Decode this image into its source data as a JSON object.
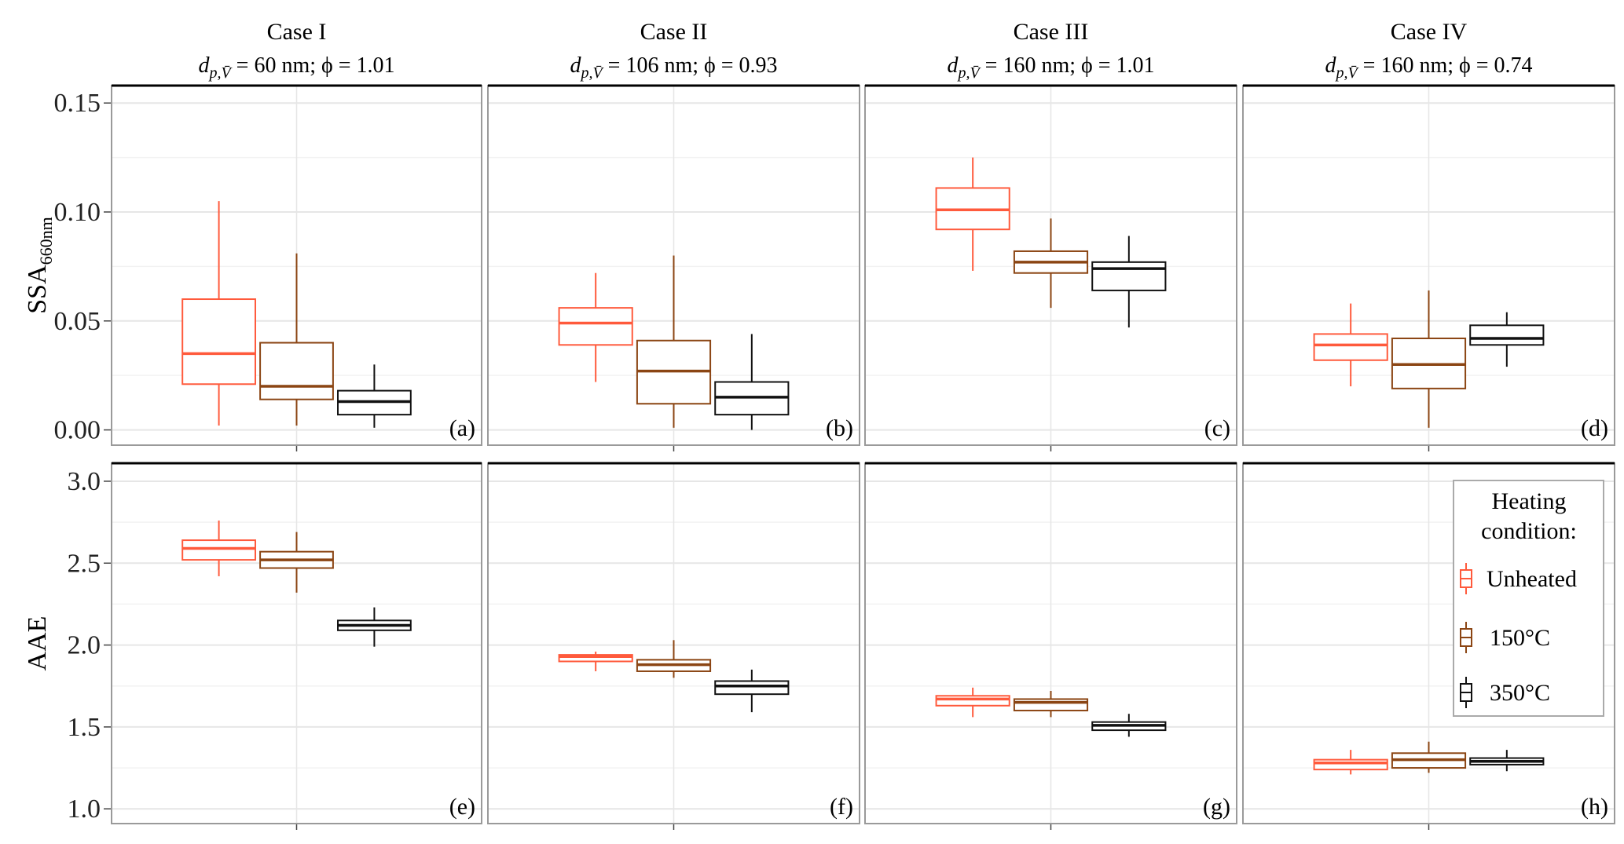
{
  "chart_data": {
    "type": "boxplot",
    "groups": [
      "Unheated",
      "150°C",
      "350°C"
    ],
    "colors": {
      "Unheated": "#ff5a3c",
      "150°C": "#8b4513",
      "350°C": "#111111"
    },
    "legend": {
      "title_line1": "Heating",
      "title_line2": "condition:",
      "placement": "inside-right (panel h)"
    },
    "grid": true,
    "columns": [
      {
        "title": "Case I",
        "sub_symbol": "d",
        "sub_subscript": "p,V̄",
        "sub_text": " = 60 nm; ϕ = 1.01"
      },
      {
        "title": "Case II",
        "sub_symbol": "d",
        "sub_subscript": "p,V̄",
        "sub_text": " = 106 nm; ϕ = 0.93"
      },
      {
        "title": "Case III",
        "sub_symbol": "d",
        "sub_subscript": "p,V̄",
        "sub_text": " = 160 nm; ϕ = 1.01"
      },
      {
        "title": "Case IV",
        "sub_symbol": "d",
        "sub_subscript": "p,V̄",
        "sub_text": " = 160 nm; ϕ = 0.74"
      }
    ],
    "rows": [
      {
        "ylabel_main": "SSA",
        "ylabel_sub": "660nm",
        "ylim": [
          -0.007,
          0.158
        ],
        "ticks": [
          0.0,
          0.05,
          0.1,
          0.15
        ],
        "tick_labels": [
          "0.00",
          "0.05",
          "0.10",
          "0.15"
        ],
        "panels": [
          {
            "label": "(a)",
            "boxes": [
              [
                0.002,
                0.021,
                0.035,
                0.06,
                0.105
              ],
              [
                0.002,
                0.014,
                0.02,
                0.04,
                0.081
              ],
              [
                0.001,
                0.007,
                0.013,
                0.018,
                0.03
              ]
            ]
          },
          {
            "label": "(b)",
            "boxes": [
              [
                0.022,
                0.039,
                0.049,
                0.056,
                0.072
              ],
              [
                0.001,
                0.012,
                0.027,
                0.041,
                0.08
              ],
              [
                0.0,
                0.007,
                0.015,
                0.022,
                0.044
              ]
            ]
          },
          {
            "label": "(c)",
            "boxes": [
              [
                0.073,
                0.092,
                0.101,
                0.111,
                0.125
              ],
              [
                0.056,
                0.072,
                0.077,
                0.082,
                0.097
              ],
              [
                0.047,
                0.064,
                0.074,
                0.077,
                0.089
              ]
            ]
          },
          {
            "label": "(d)",
            "boxes": [
              [
                0.02,
                0.032,
                0.039,
                0.044,
                0.058
              ],
              [
                0.001,
                0.019,
                0.03,
                0.042,
                0.064
              ],
              [
                0.029,
                0.039,
                0.042,
                0.048,
                0.054
              ]
            ]
          }
        ]
      },
      {
        "ylabel_main": "AAE",
        "ylabel_sub": "",
        "ylim": [
          0.91,
          3.11
        ],
        "ticks": [
          1.0,
          1.5,
          2.0,
          2.5,
          3.0
        ],
        "tick_labels": [
          "1.0",
          "1.5",
          "2.0",
          "2.5",
          "3.0"
        ],
        "panels": [
          {
            "label": "(e)",
            "boxes": [
              [
                2.42,
                2.52,
                2.59,
                2.64,
                2.76
              ],
              [
                2.32,
                2.47,
                2.52,
                2.57,
                2.69
              ],
              [
                1.99,
                2.09,
                2.12,
                2.15,
                2.23
              ]
            ]
          },
          {
            "label": "(f)",
            "boxes": [
              [
                1.84,
                1.9,
                1.93,
                1.94,
                1.96
              ],
              [
                1.8,
                1.84,
                1.88,
                1.91,
                2.03
              ],
              [
                1.59,
                1.7,
                1.75,
                1.78,
                1.85
              ]
            ]
          },
          {
            "label": "(g)",
            "boxes": [
              [
                1.56,
                1.63,
                1.67,
                1.69,
                1.74
              ],
              [
                1.56,
                1.6,
                1.65,
                1.67,
                1.72
              ],
              [
                1.44,
                1.48,
                1.51,
                1.53,
                1.58
              ]
            ]
          },
          {
            "label": "(h)",
            "boxes": [
              [
                1.21,
                1.24,
                1.28,
                1.3,
                1.36
              ],
              [
                1.22,
                1.25,
                1.3,
                1.34,
                1.41
              ],
              [
                1.23,
                1.27,
                1.29,
                1.31,
                1.36
              ]
            ]
          }
        ]
      }
    ]
  }
}
